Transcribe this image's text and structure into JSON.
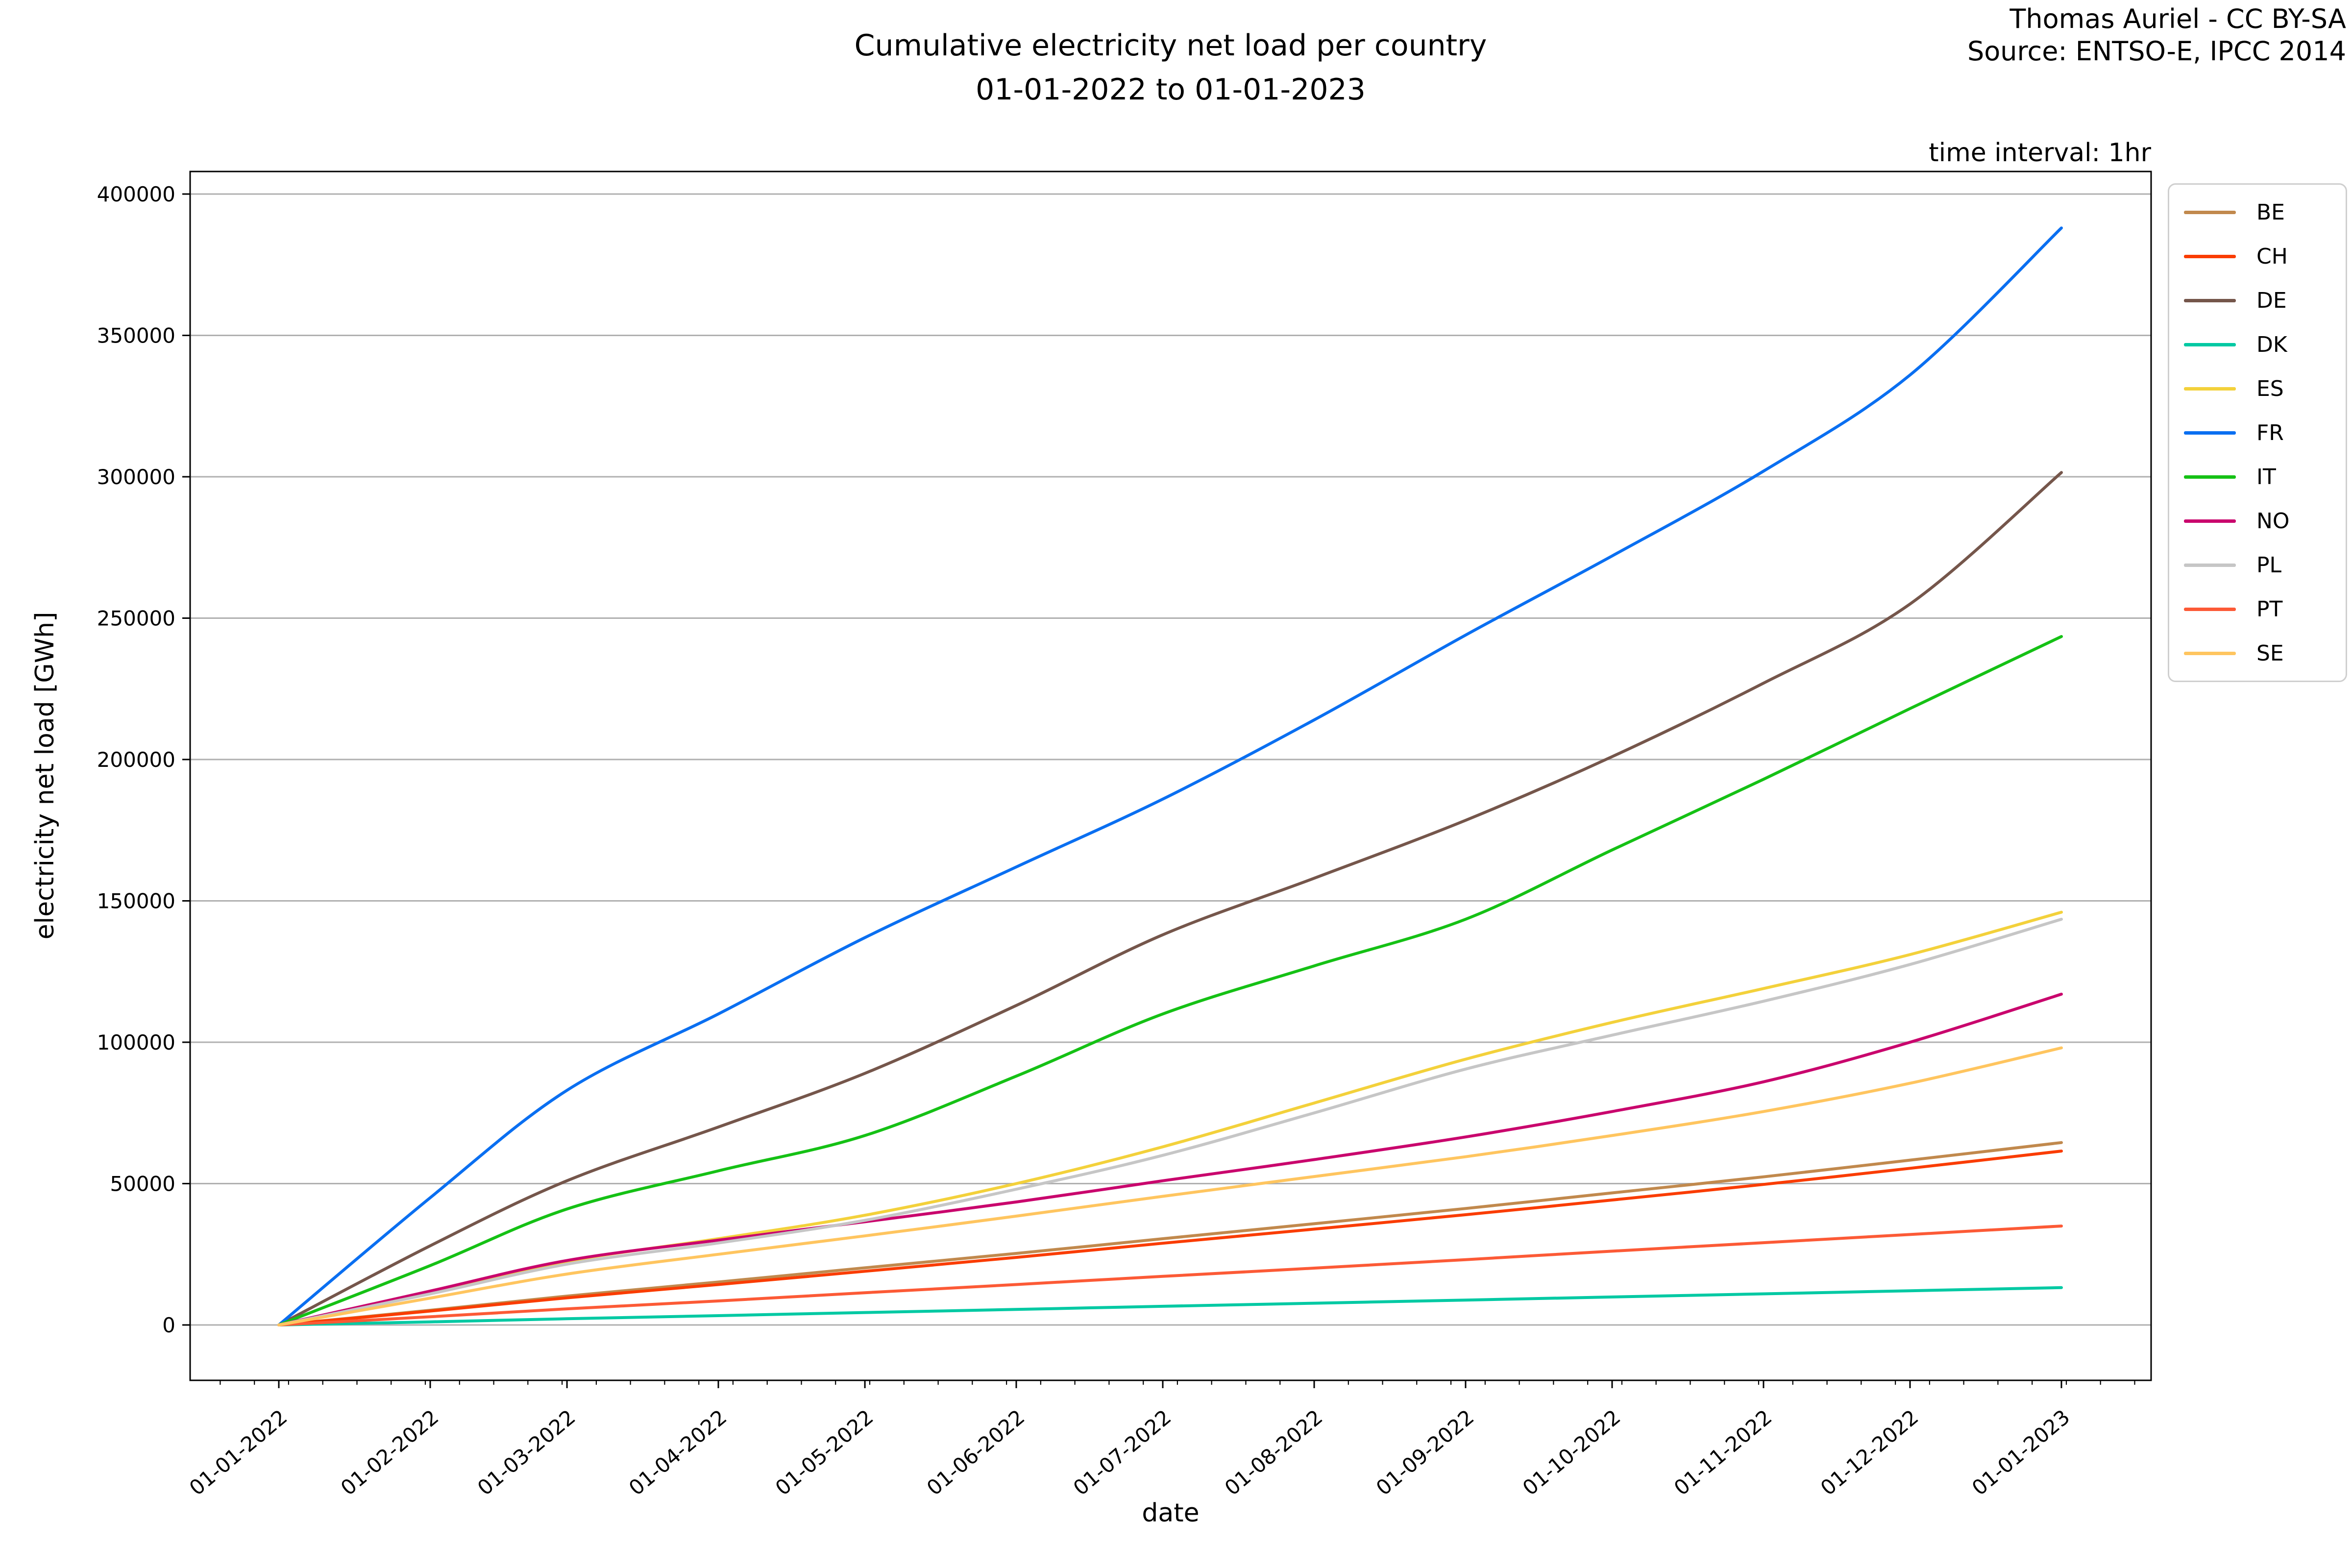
{
  "title": {
    "line1": "Cumulative electricity net load per country",
    "line2": "01-01-2022 to 01-01-2023"
  },
  "attribution": {
    "line1": "Thomas Auriel - CC BY-SA",
    "line2": "Source: ENTSO-E, IPCC 2014"
  },
  "annotation": "time interval: 1hr",
  "chart_data": {
    "type": "line",
    "title": "Cumulative electricity net load per country 01-01-2022 to 01-01-2023",
    "xlabel": "date",
    "ylabel": "electricity net load [GWh]",
    "x": [
      "01-01-2022",
      "01-02-2022",
      "01-03-2022",
      "01-04-2022",
      "01-05-2022",
      "01-06-2022",
      "01-07-2022",
      "01-08-2022",
      "01-09-2022",
      "01-10-2022",
      "01-11-2022",
      "01-12-2022",
      "01-01-2023"
    ],
    "x_days": [
      0,
      31,
      59,
      90,
      120,
      151,
      181,
      212,
      243,
      273,
      304,
      334,
      365
    ],
    "y_ticks": [
      0,
      50000,
      100000,
      150000,
      200000,
      250000,
      300000,
      350000,
      400000
    ],
    "ylim": [
      -19400,
      407400
    ],
    "xlim_days": [
      -18.2,
      383.4
    ],
    "grid": "horizontal",
    "grid_color": "#b0b0b0",
    "legend_position": "right",
    "minor_ticks_x": "weekly",
    "series": [
      {
        "name": "BE",
        "color": "#c1894d",
        "values": [
          0,
          5200,
          10200,
          15200,
          20200,
          25300,
          30500,
          35800,
          41200,
          46700,
          52400,
          58300,
          64500
        ]
      },
      {
        "name": "CH",
        "color": "#fa3c00",
        "values": [
          0,
          4900,
          9600,
          14300,
          19000,
          23900,
          28900,
          33900,
          39000,
          44200,
          49700,
          55400,
          61500
        ]
      },
      {
        "name": "DE",
        "color": "#75564b",
        "values": [
          0,
          28000,
          51000,
          70000,
          89000,
          113000,
          138000,
          158000,
          178500,
          201000,
          227000,
          255000,
          301500
        ]
      },
      {
        "name": "DK",
        "color": "#00c9a3",
        "values": [
          0,
          1100,
          2200,
          3300,
          4400,
          5500,
          6600,
          7700,
          8800,
          9900,
          11000,
          12100,
          13200
        ]
      },
      {
        "name": "ES",
        "color": "#f3d13b",
        "values": [
          0,
          11500,
          22500,
          30500,
          38800,
          50000,
          63000,
          78500,
          94000,
          107000,
          119000,
          131000,
          146000
        ]
      },
      {
        "name": "FR",
        "color": "#0a6ff1",
        "values": [
          0,
          45000,
          83000,
          110000,
          137000,
          162000,
          186000,
          214000,
          244000,
          272000,
          302000,
          336000,
          388000
        ]
      },
      {
        "name": "IT",
        "color": "#15c115",
        "values": [
          0,
          21000,
          41000,
          54500,
          67000,
          88000,
          110000,
          127000,
          143500,
          168000,
          193000,
          218000,
          243500
        ]
      },
      {
        "name": "NO",
        "color": "#c9056d",
        "values": [
          0,
          12000,
          22800,
          30000,
          36500,
          43500,
          51000,
          58500,
          66500,
          75500,
          86000,
          100000,
          117000
        ]
      },
      {
        "name": "PL",
        "color": "#c6c6c6",
        "values": [
          0,
          11000,
          21500,
          29000,
          37000,
          48000,
          60000,
          75000,
          90500,
          102500,
          114500,
          127500,
          143500
        ]
      },
      {
        "name": "PT",
        "color": "#fc5a36",
        "values": [
          0,
          2900,
          5700,
          8500,
          11400,
          14300,
          17200,
          20100,
          23100,
          26100,
          29100,
          32000,
          35000
        ]
      },
      {
        "name": "SE",
        "color": "#ffc55f",
        "values": [
          0,
          9500,
          18000,
          25000,
          31500,
          38500,
          45500,
          52500,
          59500,
          67000,
          75500,
          85500,
          98000
        ]
      }
    ]
  }
}
